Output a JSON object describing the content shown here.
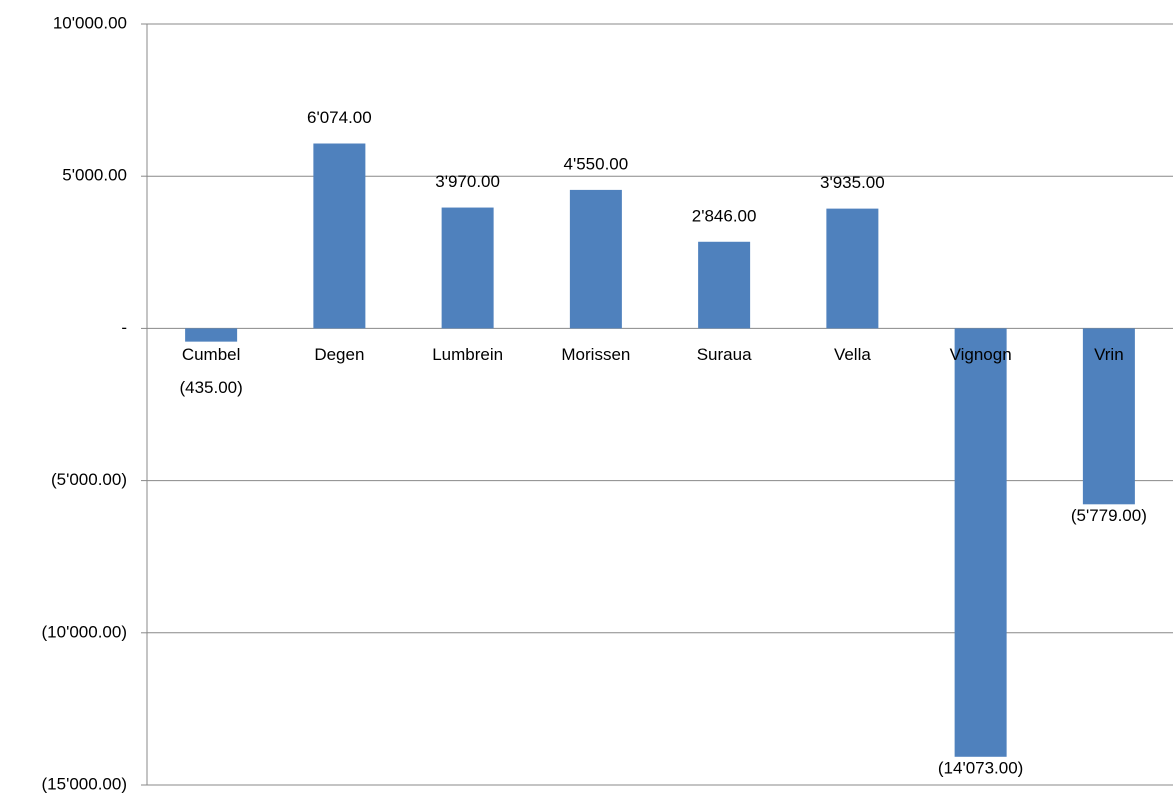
{
  "chart_data": {
    "type": "bar",
    "categories": [
      "Cumbel",
      "Degen",
      "Lumbrein",
      "Morissen",
      "Suraua",
      "Vella",
      "Vignogn",
      "Vrin"
    ],
    "values": [
      -435,
      6074,
      3970,
      4550,
      2846,
      3935,
      -14073,
      -5779
    ],
    "value_labels": [
      "(435.00)",
      "6'074.00",
      "3'970.00",
      "4'550.00",
      "2'846.00",
      "3'935.00",
      "(14'073.00)",
      "(5'779.00)"
    ],
    "color": "#4f81bd",
    "ylim": [
      -15000,
      10000
    ],
    "yticks": [
      {
        "value": 10000,
        "label": "10'000.00"
      },
      {
        "value": 5000,
        "label": "5'000.00"
      },
      {
        "value": 0,
        "label": "-"
      },
      {
        "value": -5000,
        "label": "(5'000.00)"
      },
      {
        "value": -10000,
        "label": "(10'000.00)"
      },
      {
        "value": -15000,
        "label": "(15'000.00)"
      }
    ],
    "grid": true
  }
}
